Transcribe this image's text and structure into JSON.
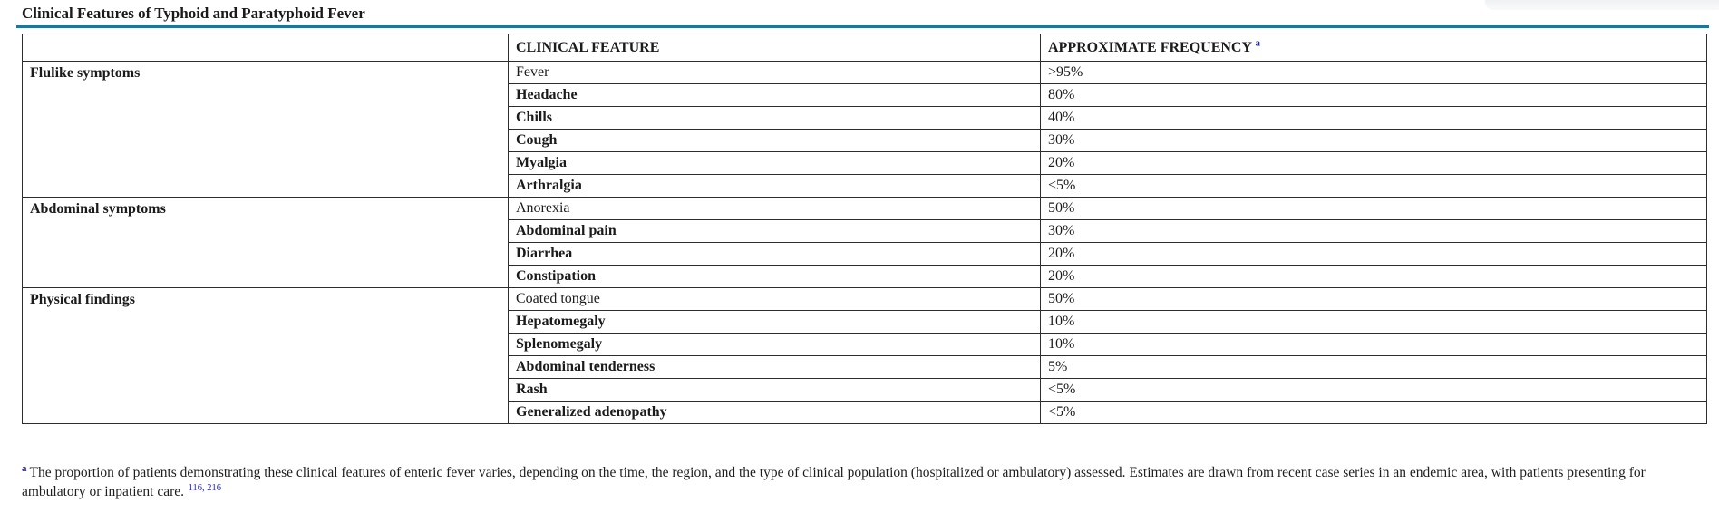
{
  "page": {
    "title": "Clinical Features of Typhoid and Paratyphoid Fever"
  },
  "colors": {
    "accent_rule": "#0f7ca6",
    "link_blue": "#2222cc",
    "border": "#2d2d2d"
  },
  "table": {
    "columns": [
      "",
      "CLINICAL FEATURE",
      "APPROXIMATE FREQUENCY"
    ],
    "header_footnote_marker": "a",
    "groups": [
      {
        "label": "Flulike symptoms",
        "rows": [
          {
            "feature": "Fever",
            "frequency": ">95%",
            "bold_feature": false
          },
          {
            "feature": "Headache",
            "frequency": "80%",
            "bold_feature": true
          },
          {
            "feature": "Chills",
            "frequency": "40%",
            "bold_feature": true
          },
          {
            "feature": "Cough",
            "frequency": "30%",
            "bold_feature": true
          },
          {
            "feature": "Myalgia",
            "frequency": "20%",
            "bold_feature": true
          },
          {
            "feature": "Arthralgia",
            "frequency": "<5%",
            "bold_feature": true
          }
        ]
      },
      {
        "label": "Abdominal symptoms",
        "rows": [
          {
            "feature": "Anorexia",
            "frequency": "50%",
            "bold_feature": false
          },
          {
            "feature": "Abdominal pain",
            "frequency": "30%",
            "bold_feature": true
          },
          {
            "feature": "Diarrhea",
            "frequency": "20%",
            "bold_feature": true
          },
          {
            "feature": "Constipation",
            "frequency": "20%",
            "bold_feature": true
          }
        ]
      },
      {
        "label": "Physical findings",
        "rows": [
          {
            "feature": "Coated tongue",
            "frequency": "50%",
            "bold_feature": false
          },
          {
            "feature": "Hepatomegaly",
            "frequency": "10%",
            "bold_feature": true
          },
          {
            "feature": "Splenomegaly",
            "frequency": "10%",
            "bold_feature": true
          },
          {
            "feature": "Abdominal tenderness",
            "frequency": "5%",
            "bold_feature": true
          },
          {
            "feature": "Rash",
            "frequency": "<5%",
            "bold_feature": true
          },
          {
            "feature": "Generalized adenopathy",
            "frequency": "<5%",
            "bold_feature": true
          }
        ]
      }
    ]
  },
  "footnote": {
    "marker": "a",
    "text": "The proportion of patients demonstrating these clinical features of enteric fever varies, depending on the time, the region, and the type of clinical population (hospitalized or ambulatory) assessed. Estimates are drawn from recent case series in an endemic area, with patients presenting for ambulatory or inpatient care.",
    "references": [
      "116",
      "216"
    ],
    "references_separator": ", "
  }
}
